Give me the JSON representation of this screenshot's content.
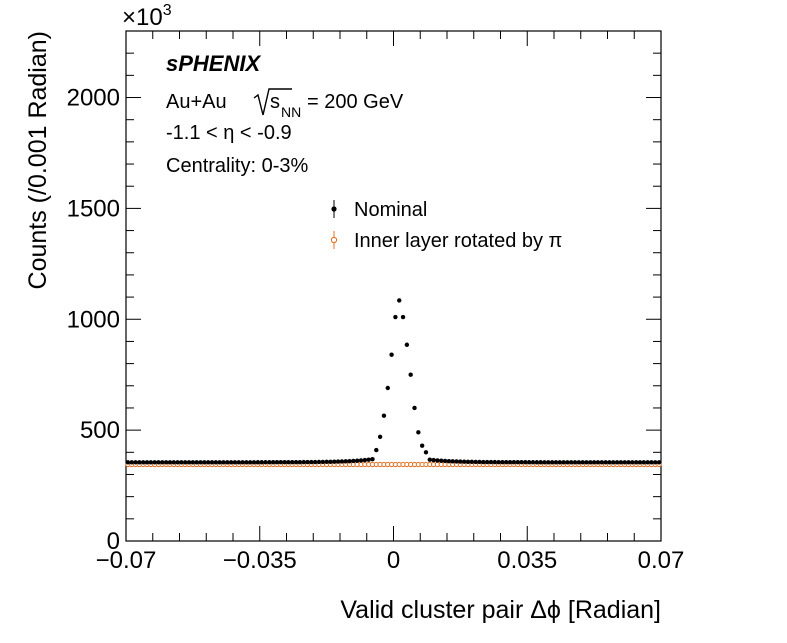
{
  "chart_data": {
    "type": "scatter",
    "xlabel": "Valid cluster pair Δϕ [Radian]",
    "ylabel": "Counts (/0.001 Radian)",
    "y_multiplier_label": "×10",
    "y_multiplier_exponent": "3",
    "xlim": [
      -0.07,
      0.07
    ],
    "ylim": [
      0,
      2300
    ],
    "x_ticks": [
      -0.07,
      -0.035,
      0,
      0.035,
      0.07
    ],
    "x_tick_labels": [
      "−0.07",
      "−0.035",
      "0",
      "0.035",
      "0.07"
    ],
    "y_ticks": [
      0,
      500,
      1000,
      1500,
      2000
    ],
    "y_tick_labels": [
      "0",
      "500",
      "1000",
      "1500",
      "2000"
    ],
    "grid": false,
    "legend_position": "upper-center",
    "bin_width": 0.001,
    "annotations": {
      "experiment": "sPHENIX",
      "system": "Au+Au",
      "energy_sqrt": "s",
      "energy_sub": "NN",
      "energy_value": "= 200 GeV",
      "eta_range": "-1.1 < η < -0.9",
      "centrality": "Centrality: 0-3%"
    },
    "series": [
      {
        "name": "Nominal",
        "color": "#000000",
        "marker": "filled-circle",
        "baseline": 355,
        "peak_points": [
          {
            "x": -0.0045,
            "y": 410
          },
          {
            "x": -0.0035,
            "y": 470
          },
          {
            "x": -0.0025,
            "y": 565
          },
          {
            "x": -0.0015,
            "y": 690
          },
          {
            "x": -0.0005,
            "y": 840
          },
          {
            "x": 0.0005,
            "y": 1010
          },
          {
            "x": 0.0015,
            "y": 1085
          },
          {
            "x": 0.0025,
            "y": 1010
          },
          {
            "x": 0.0035,
            "y": 885
          },
          {
            "x": 0.0045,
            "y": 750
          },
          {
            "x": 0.0055,
            "y": 600
          },
          {
            "x": 0.0065,
            "y": 490
          },
          {
            "x": 0.0075,
            "y": 430
          },
          {
            "x": 0.0085,
            "y": 400
          }
        ]
      },
      {
        "name": "Inner layer rotated by π",
        "color": "#e07020",
        "marker": "open-circle",
        "baseline": 345
      }
    ]
  }
}
